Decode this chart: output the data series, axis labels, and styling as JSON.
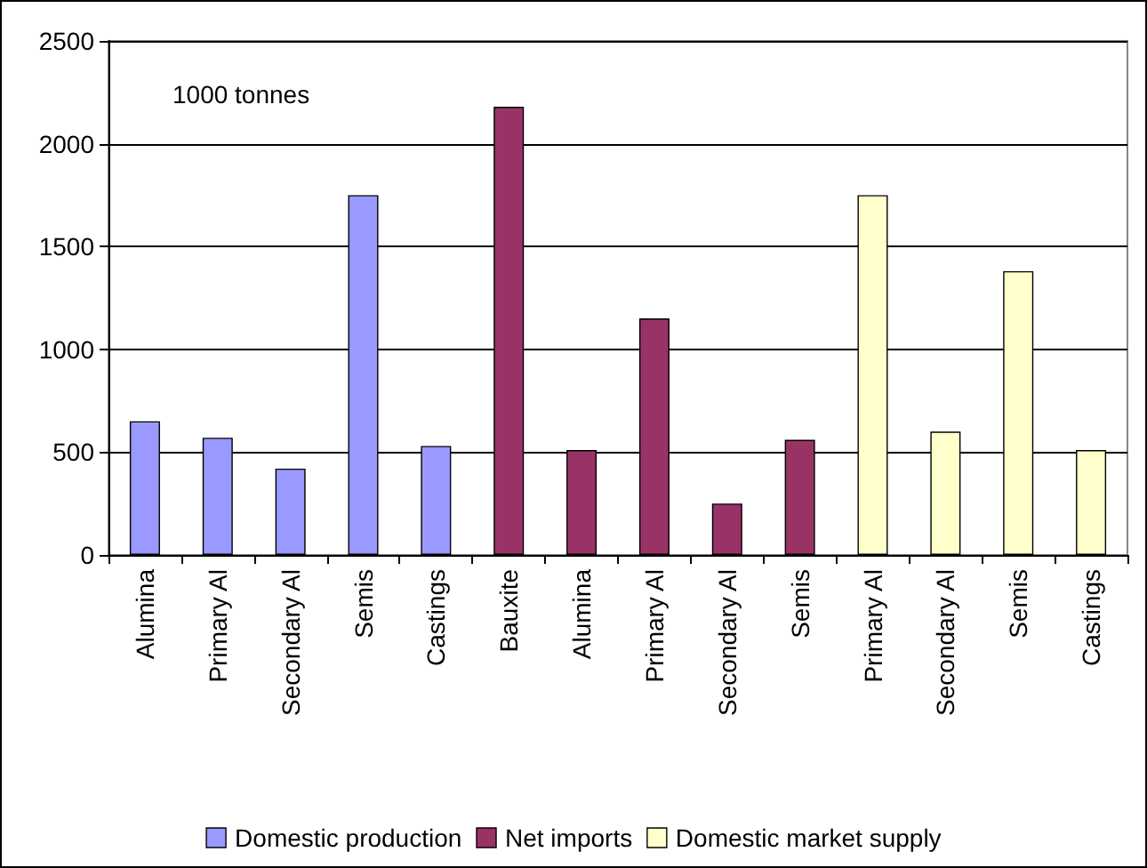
{
  "chart_data": {
    "type": "bar",
    "categories": [
      "Alumina",
      "Primary Al",
      "Secondary Al",
      "Semis",
      "Castings",
      "Bauxite",
      "Alumina",
      "Primary Al",
      "Secondary Al",
      "Semis",
      "Primary Al",
      "Secondary Al",
      "Semis",
      "Castings"
    ],
    "series": [
      {
        "name": "Domestic production",
        "color": "#9999ff",
        "values": [
          650,
          570,
          420,
          1750,
          530,
          null,
          null,
          null,
          null,
          null,
          null,
          null,
          null,
          null
        ]
      },
      {
        "name": "Net imports",
        "color": "#993366",
        "values": [
          null,
          null,
          null,
          null,
          null,
          2180,
          510,
          1150,
          250,
          560,
          null,
          null,
          null,
          null
        ]
      },
      {
        "name": "Domestic market supply",
        "color": "#ffffcc",
        "values": [
          null,
          null,
          null,
          null,
          null,
          null,
          null,
          null,
          null,
          null,
          1750,
          600,
          1380,
          510
        ]
      }
    ],
    "ylim": [
      0,
      2500
    ],
    "yticks": [
      0,
      500,
      1000,
      1500,
      2000,
      2500
    ],
    "grid": "y",
    "legend": "bottom",
    "annotations": [
      "1000 tonnes"
    ]
  }
}
